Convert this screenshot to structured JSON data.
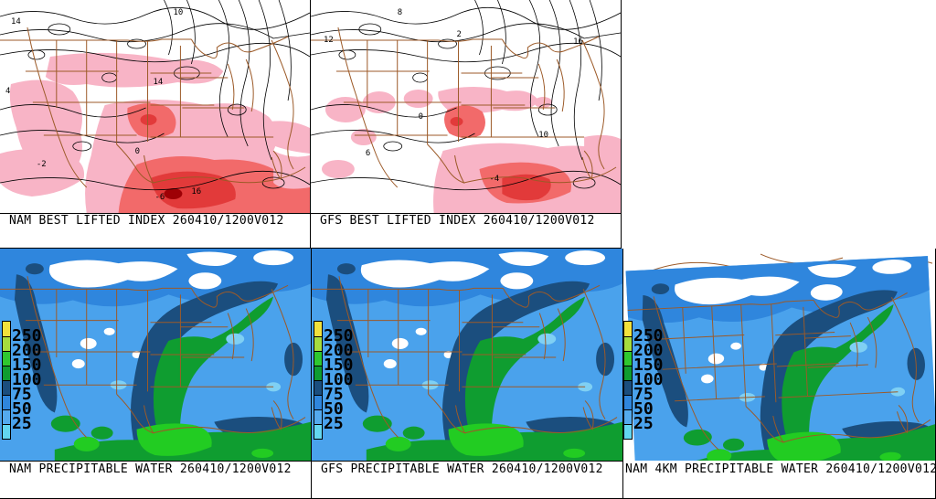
{
  "panels": [
    {
      "label": "NAM BEST LIFTED INDEX 260410/1200V012",
      "model": "NAM",
      "field": "BEST LIFTED INDEX",
      "valid": "260410/1200V012",
      "contour_labels": [
        "14",
        "4",
        "10",
        "14",
        "0",
        "-2",
        "16",
        "-6"
      ]
    },
    {
      "label": "GFS BEST LIFTED INDEX 260410/1200V012",
      "model": "GFS",
      "field": "BEST LIFTED INDEX",
      "valid": "260410/1200V012",
      "contour_labels": [
        "12",
        "8",
        "2",
        "16",
        "0",
        "-4",
        "6",
        "10"
      ]
    },
    {
      "label": "NAM PRECIPITABLE WATER 260410/1200V012",
      "model": "NAM",
      "field": "PRECIPITABLE WATER",
      "valid": "260410/1200V012"
    },
    {
      "label": "GFS PRECIPITABLE WATER 260410/1200V012",
      "model": "GFS",
      "field": "PRECIPITABLE WATER",
      "valid": "260410/1200V012"
    },
    {
      "label": "NAM 4KM PRECIPITABLE WATER 260410/1200V012",
      "model": "NAM 4KM",
      "field": "PRECIPITABLE WATER",
      "valid": "260410/1200V012"
    }
  ],
  "colorbar": {
    "labels": [
      "250",
      "200",
      "150",
      "100",
      "75",
      "50",
      "25"
    ],
    "segment_colors_top_to_bottom": [
      "#f2e13c",
      "#a6dc3e",
      "#2fc82f",
      "#0f9d30",
      "#1b4e7e",
      "#2f86dd",
      "#54aaee",
      "#63d6f0"
    ]
  },
  "palette": {
    "pw_background_blue": "#4aa2ec",
    "pw_upper_blue": "#2f86dd",
    "pw_navy": "#1b4e7e",
    "pw_green": "#0f9d30",
    "pw_bright_green": "#22cc22",
    "pw_light_cyan": "#7fd0f4",
    "li_pink": "#f8b4c6",
    "li_red": "#f26a6a",
    "li_strong_red": "#e23a3a",
    "li_dark_red": "#9e0005",
    "state_border_brown": "#9c5a28"
  }
}
